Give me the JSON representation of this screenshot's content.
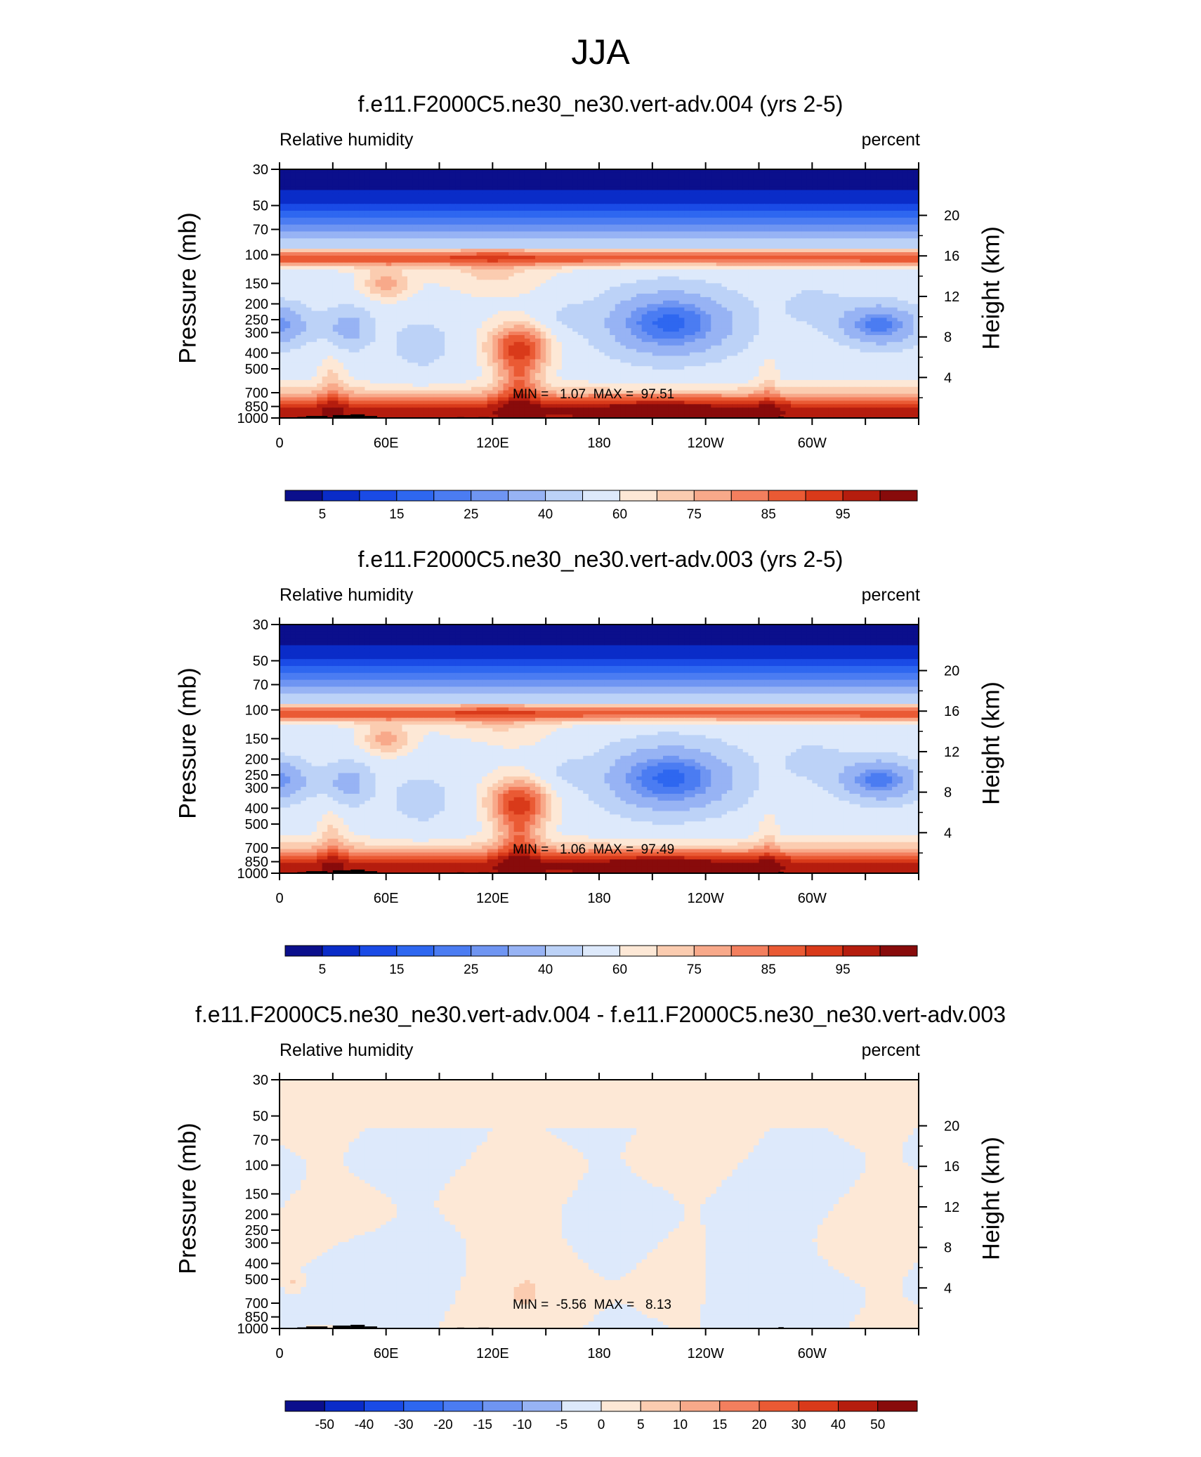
{
  "figure": {
    "title": "JJA"
  },
  "panels": [
    {
      "title": "f.e11.F2000C5.ne30_ne30.vert-adv.004 (yrs 2-5)",
      "variable": "Relative humidity",
      "units": "percent",
      "y_label_left": "Pressure (mb)",
      "y_label_right": "Height (km)",
      "stats_text": "MIN =   1.07  MAX =  97.51",
      "colorbar_labels": [
        "5",
        "15",
        "25",
        "40",
        "60",
        "75",
        "85",
        "95"
      ]
    },
    {
      "title": "f.e11.F2000C5.ne30_ne30.vert-adv.003 (yrs 2-5)",
      "variable": "Relative humidity",
      "units": "percent",
      "y_label_left": "Pressure (mb)",
      "y_label_right": "Height (km)",
      "stats_text": "MIN =   1.06  MAX =  97.49",
      "colorbar_labels": [
        "5",
        "15",
        "25",
        "40",
        "60",
        "75",
        "85",
        "95"
      ]
    },
    {
      "title": "f.e11.F2000C5.ne30_ne30.vert-adv.004 - f.e11.F2000C5.ne30_ne30.vert-adv.003",
      "variable": "Relative humidity",
      "units": "percent",
      "y_label_left": "Pressure (mb)",
      "y_label_right": "Height (km)",
      "stats_text": "MIN =  -5.56  MAX =   8.13",
      "colorbar_labels": [
        "-50",
        "-40",
        "-30",
        "-20",
        "-15",
        "-10",
        "-5",
        "0",
        "5",
        "10",
        "15",
        "20",
        "30",
        "40",
        "50"
      ]
    }
  ],
  "chart_data": [
    {
      "type": "heatmap",
      "title": "f.e11.F2000C5.ne30_ne30.vert-adv.004 (yrs 2-5)",
      "variable": "Relative humidity",
      "units": "percent",
      "x_ticks": [
        "0",
        "60E",
        "120E",
        "180",
        "120W",
        "60W"
      ],
      "x_range_lon": [
        0,
        360
      ],
      "y_ticks_pressure_mb": [
        "30",
        "50",
        "70",
        "100",
        "150",
        "200",
        "250",
        "300",
        "400",
        "500",
        "700",
        "850",
        "1000"
      ],
      "y_range_mb": [
        30,
        1000
      ],
      "y_scale": "log",
      "y_ticks_height_km": [
        "20",
        "16",
        "12",
        "8",
        "4"
      ],
      "min": 1.07,
      "max": 97.51,
      "levels": [
        5,
        10,
        15,
        20,
        25,
        30,
        40,
        50,
        60,
        65,
        70,
        75,
        80,
        85,
        90,
        95
      ],
      "colors": [
        "#0b0f8c",
        "#0a2cc8",
        "#1a4be6",
        "#2e67f0",
        "#4b7cf2",
        "#6f95f2",
        "#97b3f4",
        "#bcd2f7",
        "#dde9fb",
        "#fde8d6",
        "#fbccb0",
        "#f8a98a",
        "#f37f5e",
        "#ea5a34",
        "#d93a1a",
        "#b51d0e",
        "#880b0b"
      ],
      "colorbar_labels": [
        "5",
        "15",
        "25",
        "40",
        "60",
        "75",
        "85",
        "95"
      ]
    },
    {
      "type": "heatmap",
      "title": "f.e11.F2000C5.ne30_ne30.vert-adv.003 (yrs 2-5)",
      "variable": "Relative humidity",
      "units": "percent",
      "x_ticks": [
        "0",
        "60E",
        "120E",
        "180",
        "120W",
        "60W"
      ],
      "x_range_lon": [
        0,
        360
      ],
      "y_ticks_pressure_mb": [
        "30",
        "50",
        "70",
        "100",
        "150",
        "200",
        "250",
        "300",
        "400",
        "500",
        "700",
        "850",
        "1000"
      ],
      "y_range_mb": [
        30,
        1000
      ],
      "y_scale": "log",
      "y_ticks_height_km": [
        "20",
        "16",
        "12",
        "8",
        "4"
      ],
      "min": 1.06,
      "max": 97.49,
      "levels": [
        5,
        10,
        15,
        20,
        25,
        30,
        40,
        50,
        60,
        65,
        70,
        75,
        80,
        85,
        90,
        95
      ],
      "colors": [
        "#0b0f8c",
        "#0a2cc8",
        "#1a4be6",
        "#2e67f0",
        "#4b7cf2",
        "#6f95f2",
        "#97b3f4",
        "#bcd2f7",
        "#dde9fb",
        "#fde8d6",
        "#fbccb0",
        "#f8a98a",
        "#f37f5e",
        "#ea5a34",
        "#d93a1a",
        "#b51d0e",
        "#880b0b"
      ],
      "colorbar_labels": [
        "5",
        "15",
        "25",
        "40",
        "60",
        "75",
        "85",
        "95"
      ]
    },
    {
      "type": "heatmap",
      "title": "f.e11.F2000C5.ne30_ne30.vert-adv.004 - f.e11.F2000C5.ne30_ne30.vert-adv.003",
      "variable": "Relative humidity",
      "units": "percent",
      "x_ticks": [
        "0",
        "60E",
        "120E",
        "180",
        "120W",
        "60W"
      ],
      "x_range_lon": [
        0,
        360
      ],
      "y_ticks_pressure_mb": [
        "30",
        "50",
        "70",
        "100",
        "150",
        "200",
        "250",
        "300",
        "400",
        "500",
        "700",
        "850",
        "1000"
      ],
      "y_range_mb": [
        30,
        1000
      ],
      "y_scale": "log",
      "y_ticks_height_km": [
        "20",
        "16",
        "12",
        "8",
        "4"
      ],
      "min": -5.56,
      "max": 8.13,
      "levels": [
        -50,
        -40,
        -30,
        -20,
        -15,
        -10,
        -5,
        0,
        5,
        10,
        15,
        20,
        30,
        40,
        50
      ],
      "colors": [
        "#0b0f8c",
        "#0a2cc8",
        "#1a4be6",
        "#2e67f0",
        "#4b7cf2",
        "#6f95f2",
        "#97b3f4",
        "#dde9fb",
        "#fde8d6",
        "#fbccb0",
        "#f8a98a",
        "#f37f5e",
        "#ea5a34",
        "#d93a1a",
        "#b51d0e",
        "#880b0b"
      ],
      "colorbar_labels": [
        "-50",
        "-40",
        "-30",
        "-20",
        "-15",
        "-10",
        "-5",
        "0",
        "5",
        "10",
        "15",
        "20",
        "30",
        "40",
        "50"
      ]
    }
  ]
}
